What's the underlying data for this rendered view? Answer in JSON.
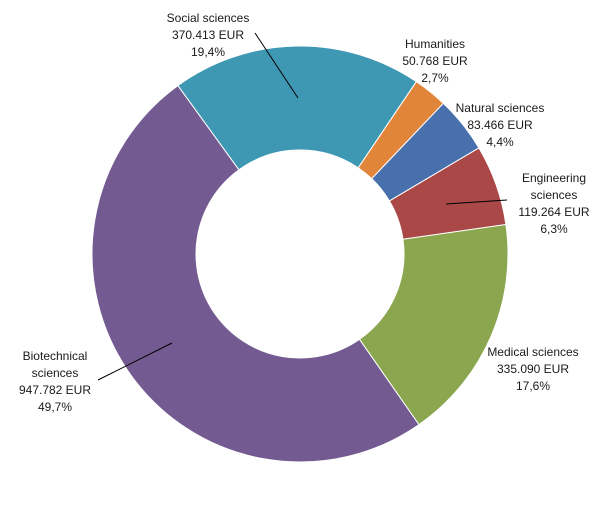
{
  "chart_data": {
    "type": "pie",
    "donut": true,
    "currency": "EUR",
    "slices": [
      {
        "name": "Humanities",
        "value": 50768,
        "value_label": "50.768 EUR",
        "percent": 2.7,
        "percent_label": "2,7%",
        "color": "#E0853A"
      },
      {
        "name": "Natural sciences",
        "value": 83466,
        "value_label": "83.466 EUR",
        "percent": 4.4,
        "percent_label": "4,4%",
        "color": "#4770AD"
      },
      {
        "name": "Engineering sciences",
        "name_lines": [
          "Engineering",
          "sciences"
        ],
        "value": 119264,
        "value_label": "119.264 EUR",
        "percent": 6.3,
        "percent_label": "6,3%",
        "color": "#A94846"
      },
      {
        "name": "Medical sciences",
        "value": 335090,
        "value_label": "335.090 EUR",
        "percent": 17.6,
        "percent_label": "17,6%",
        "color": "#8AA64E"
      },
      {
        "name": "Biotechnical sciences",
        "name_lines": [
          "Biotechnical",
          "sciences"
        ],
        "value": 947782,
        "value_label": "947.782 EUR",
        "percent": 49.7,
        "percent_label": "49,7%",
        "color": "#735A91"
      },
      {
        "name": "Social sciences",
        "value": 370413,
        "value_label": "370.413 EUR",
        "percent": 19.4,
        "percent_label": "19,4%",
        "color": "#3F98B3"
      }
    ]
  }
}
